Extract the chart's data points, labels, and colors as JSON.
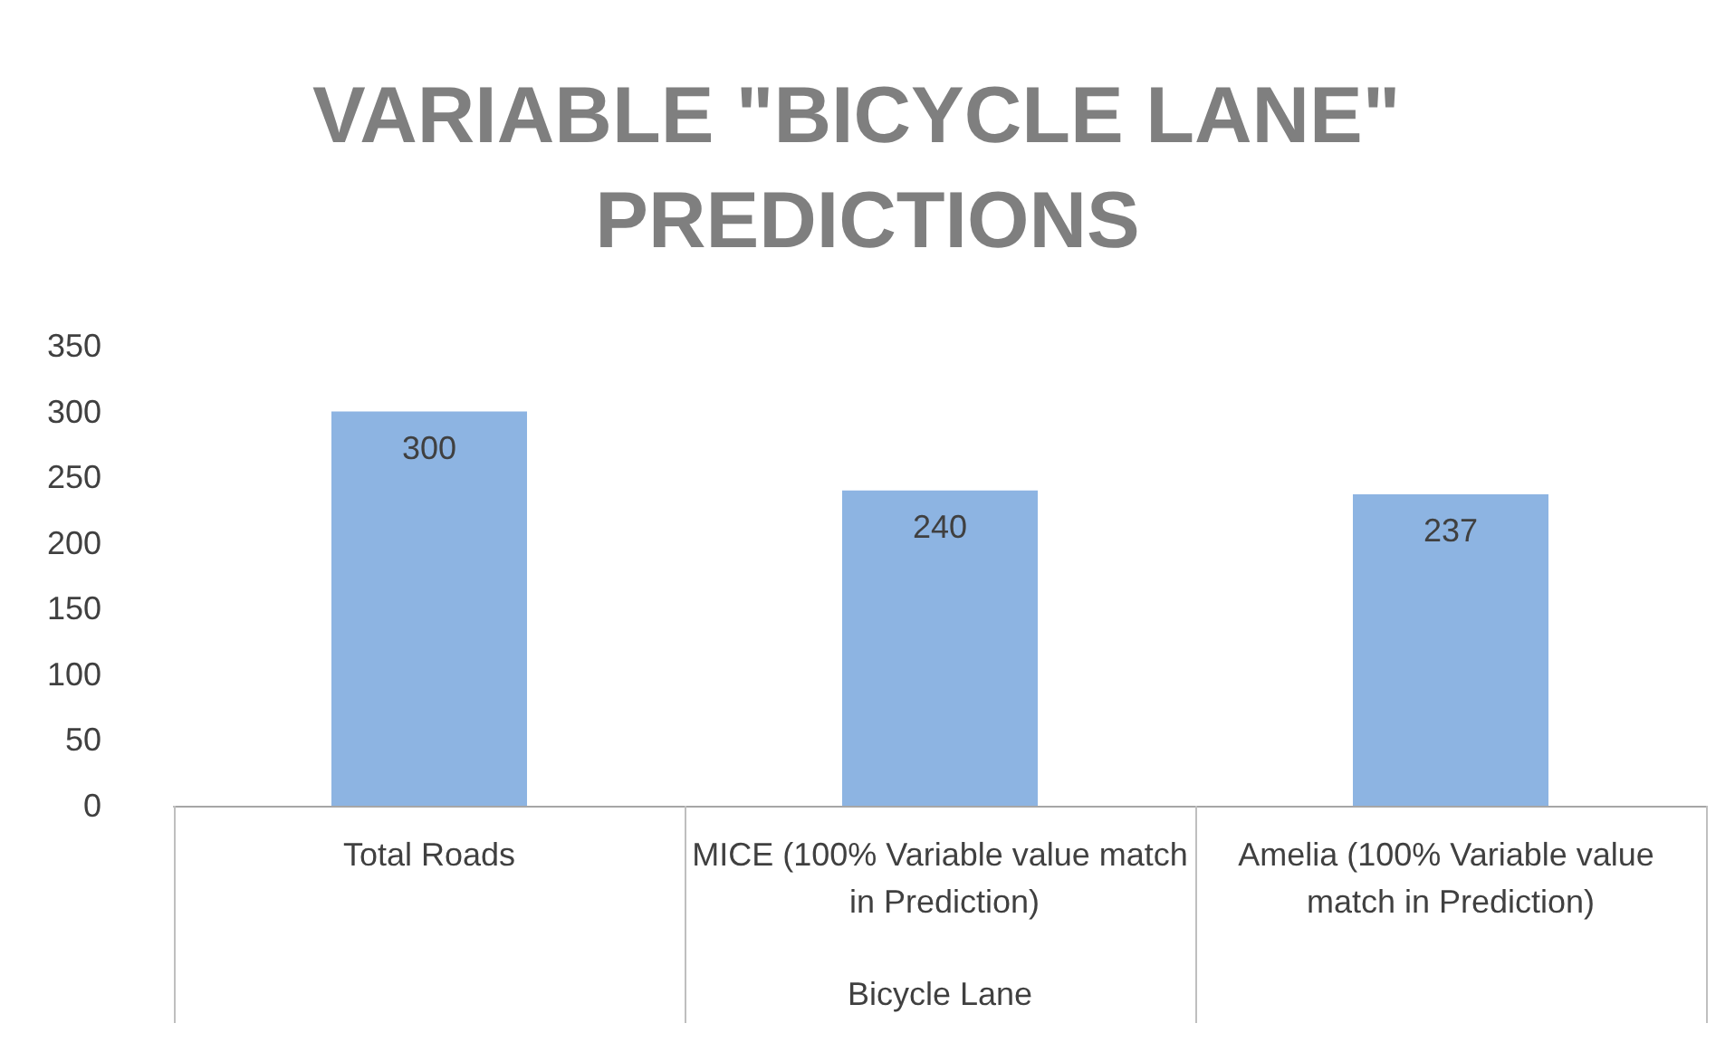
{
  "chart_data": {
    "type": "bar",
    "title": "VARIABLE \"BICYCLE LANE\" PREDICTIONS",
    "xlabel": "Bicycle Lane",
    "categories": [
      "Total Roads",
      "MICE (100% Variable value match in Prediction)",
      "Amelia (100% Variable value match in Prediction)"
    ],
    "values": [
      300,
      240,
      237
    ],
    "color": "#8db4e2",
    "ylim": [
      0,
      350
    ],
    "yticks": [
      0,
      50,
      100,
      150,
      200,
      250,
      300,
      350
    ],
    "grid": false,
    "data_labels": true
  }
}
